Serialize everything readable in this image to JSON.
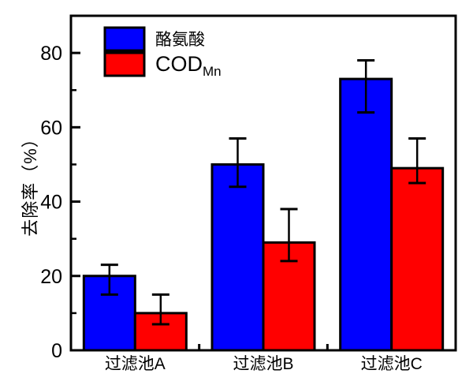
{
  "chart_data": {
    "type": "bar",
    "title": "",
    "xlabel": "",
    "ylabel": "去除率（%）",
    "categories": [
      "过滤池A",
      "过滤池B",
      "过滤池C"
    ],
    "series": [
      {
        "name": "酪氨酸",
        "color": "#0000ff",
        "values": [
          20,
          50,
          73
        ],
        "error_high": [
          23,
          57,
          78
        ],
        "error_low": [
          15,
          44,
          64
        ]
      },
      {
        "name": "COD_Mn",
        "name_main": "COD",
        "name_sub": "Mn",
        "color": "#ff0000",
        "values": [
          10,
          29,
          49
        ],
        "error_high": [
          15,
          38,
          57
        ],
        "error_low": [
          7,
          24,
          45
        ]
      }
    ],
    "ylim": [
      0,
      90
    ],
    "yticks": [
      0,
      20,
      40,
      60,
      80
    ],
    "yticks_minor": [
      10,
      30,
      50,
      70
    ],
    "grid": false,
    "legend_position": "top-left-inside",
    "bar_edge_color": "#000000",
    "error_bar_color": "#000000",
    "axis_color": "#000000",
    "background_color": "#ffffff"
  }
}
